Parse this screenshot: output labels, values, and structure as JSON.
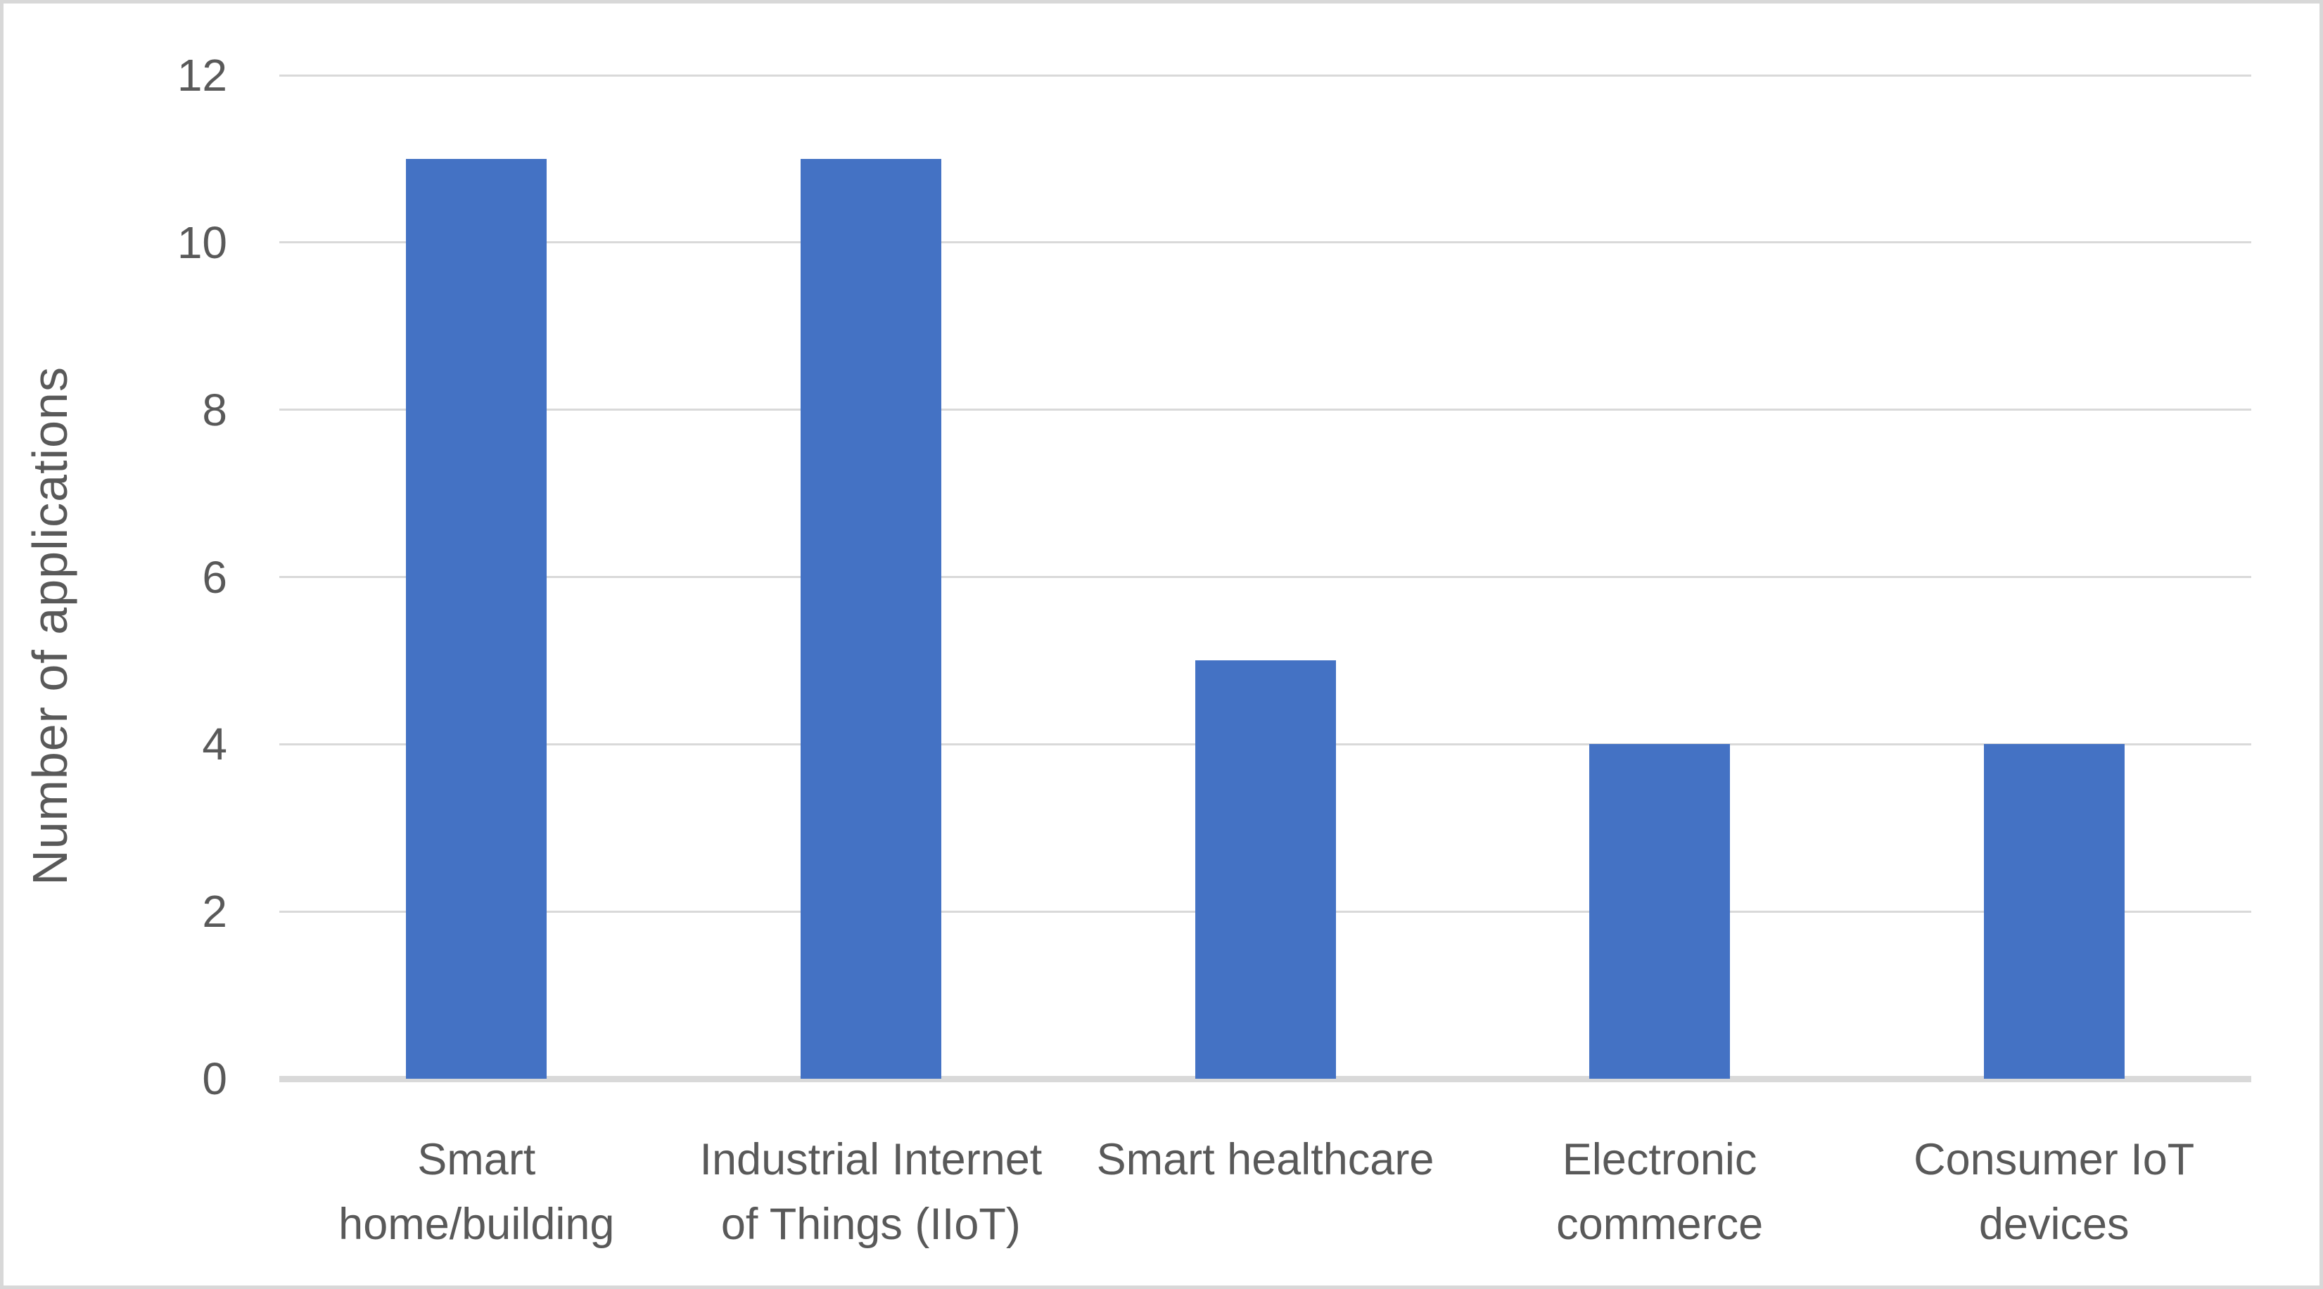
{
  "chart_data": {
    "type": "bar",
    "title": "",
    "categories": [
      "Smart home/building",
      "Industrial Internet of Things (IIoT)",
      "Smart healthcare",
      "Electronic commerce",
      "Consumer IoT devices"
    ],
    "category_label_lines": [
      [
        "Smart",
        "home/building"
      ],
      [
        "Industrial Internet",
        "of Things (IIoT)"
      ],
      [
        "Smart healthcare"
      ],
      [
        "Electronic",
        "commerce"
      ],
      [
        "Consumer IoT",
        "devices"
      ]
    ],
    "values": [
      11,
      11,
      5,
      4,
      4
    ],
    "xlabel": "",
    "ylabel": "Number of applications",
    "ylim": [
      0,
      12
    ],
    "yticks": [
      0,
      2,
      4,
      6,
      8,
      10,
      12
    ],
    "grid": "horizontal",
    "legend": "none"
  },
  "style": {
    "bar_color": "#4472C4",
    "gridline_color": "#D9D9D9",
    "axis_line_color": "#D9D9D9",
    "text_color": "#595959",
    "border_color": "#D8D8D8",
    "background": "#FFFFFF"
  }
}
